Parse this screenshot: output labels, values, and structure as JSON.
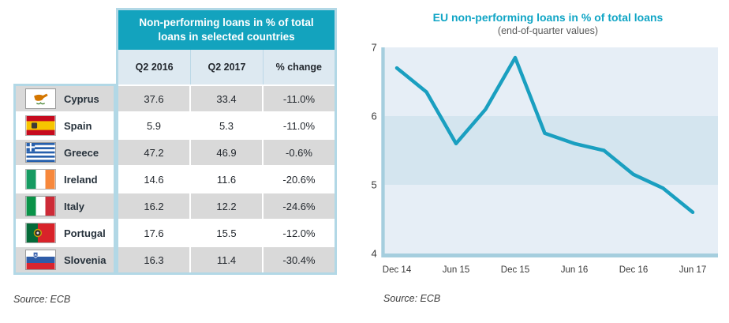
{
  "palette": {
    "accent_teal": "#13a3be",
    "row_gray": "#d9d9d9",
    "table_border": "#b2d8e6",
    "subheader_bg": "#dde9f1"
  },
  "table": {
    "title": "Non-performing loans in % of total loans in selected countries",
    "columns": [
      "Q2 2016",
      "Q2 2017",
      "% change"
    ],
    "rows": [
      {
        "country": "Cyprus",
        "flag": "cyprus",
        "values": [
          "37.6",
          "33.4",
          "-11.0%"
        ]
      },
      {
        "country": "Spain",
        "flag": "spain",
        "values": [
          "5.9",
          "5.3",
          "-11.0%"
        ]
      },
      {
        "country": "Greece",
        "flag": "greece",
        "values": [
          "47.2",
          "46.9",
          "-0.6%"
        ]
      },
      {
        "country": "Ireland",
        "flag": "ireland",
        "values": [
          "14.6",
          "11.6",
          "-20.6%"
        ]
      },
      {
        "country": "Italy",
        "flag": "italy",
        "values": [
          "16.2",
          "12.2",
          "-24.6%"
        ]
      },
      {
        "country": "Portugal",
        "flag": "portugal",
        "values": [
          "17.6",
          "15.5",
          "-12.0%"
        ]
      },
      {
        "country": "Slovenia",
        "flag": "slovenia",
        "values": [
          "16.3",
          "11.4",
          "-30.4%"
        ]
      }
    ],
    "source": "Source: ECB"
  },
  "chart_data": {
    "type": "line",
    "title": "EU non-performing loans in % of total loans",
    "subtitle": "(end-of-quarter values)",
    "x": [
      "Dec 14",
      "Mar 15",
      "Jun 15",
      "Sep 15",
      "Dec 15",
      "Mar 16",
      "Jun 16",
      "Sep 16",
      "Dec 16",
      "Mar 17",
      "Jun 17"
    ],
    "values": [
      6.7,
      6.35,
      5.6,
      6.1,
      6.85,
      5.75,
      5.6,
      5.5,
      5.15,
      4.95,
      4.6
    ],
    "x_tick_labels": [
      "Dec 14",
      "Jun 15",
      "Dec 15",
      "Jun 16",
      "Dec 16",
      "Jun 17"
    ],
    "x_tick_indices": [
      0,
      2,
      4,
      6,
      8,
      10
    ],
    "yticks": [
      7,
      6,
      5,
      4
    ],
    "ylim": [
      4,
      7
    ],
    "xlabel": "",
    "ylabel": "",
    "grid": false,
    "legend": "none",
    "line_color": "#1a9fc0",
    "band_colors": [
      "#e6eef6",
      "#d4e5ef"
    ],
    "axis_color": "#a5cede",
    "source": "Source: ECB"
  }
}
